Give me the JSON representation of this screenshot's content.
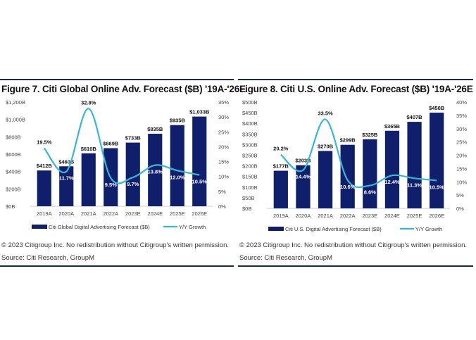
{
  "colors": {
    "bar": "#0f1f6b",
    "line": "#35b8d8",
    "rule": "#1a2a4a"
  },
  "chart_data": [
    {
      "type": "bar",
      "title": "Figure 7. Citi Global Online Adv. Forecast ($B) '19A-'26E",
      "categories": [
        "2019A",
        "2020A",
        "2021A",
        "2022A",
        "2023E",
        "2024E",
        "2025E",
        "2026E"
      ],
      "series": [
        {
          "name": "Citi Global Digital Advertising Forecast ($B)",
          "type": "bar",
          "axis": "left",
          "values": [
            412,
            460,
            610,
            669,
            733,
            835,
            935,
            1033
          ],
          "labels": [
            "$412B",
            "$460B",
            "$610B",
            "$669B",
            "$733B",
            "$835B",
            "$935B",
            "$1,033B"
          ]
        },
        {
          "name": "Y/Y Growth",
          "type": "line",
          "axis": "right",
          "values": [
            19.5,
            11.7,
            32.8,
            9.5,
            9.7,
            13.8,
            12.0,
            10.5
          ],
          "labels": [
            "19.5%",
            "11.7%",
            "32.8%",
            "9.5%",
            "9.7%",
            "13.8%",
            "12.0%",
            "10.5%"
          ]
        }
      ],
      "ylim": [
        0,
        1200
      ],
      "yticks": [
        "$0B",
        "$200B",
        "$400B",
        "$600B",
        "$800B",
        "$1,000B",
        "$1,200B"
      ],
      "y2lim": [
        0,
        35
      ],
      "y2ticks": [
        "0%",
        "5%",
        "10%",
        "15%",
        "20%",
        "25%",
        "30%",
        "35%"
      ],
      "legend": "bottom",
      "grid": false,
      "copyright": "© 2023 Citigroup Inc. No redistribution without Citigroup's written permission.",
      "source": "Source: Citi Research, GroupM"
    },
    {
      "type": "bar",
      "title": "Figure 8. Citi U.S. Online Adv. Forecast ($B) '19A-'26E",
      "categories": [
        "2019A",
        "2020A",
        "2021A",
        "2022A",
        "2023E",
        "2024E",
        "2025E",
        "2026E"
      ],
      "series": [
        {
          "name": "Citi U.S. Digital Advertising Forecast ($B)",
          "type": "bar",
          "axis": "left",
          "values": [
            177,
            203,
            270,
            299,
            325,
            365,
            407,
            450
          ],
          "labels": [
            "$177B",
            "$203B",
            "$270B",
            "$299B",
            "$325B",
            "$365B",
            "$407B",
            "$450B"
          ]
        },
        {
          "name": "Y/Y Growth",
          "type": "line",
          "axis": "right",
          "values": [
            20.2,
            14.4,
            33.5,
            10.6,
            8.6,
            12.4,
            11.3,
            10.5
          ],
          "labels": [
            "20.2%",
            "14.4%",
            "33.5%",
            "10.6%",
            "8.6%",
            "12.4%",
            "11.3%",
            "10.5%"
          ]
        }
      ],
      "ylim": [
        0,
        500
      ],
      "yticks": [
        "$0B",
        "$50B",
        "$100B",
        "$150B",
        "$200B",
        "$250B",
        "$300B",
        "$350B",
        "$400B",
        "$450B",
        "$500B"
      ],
      "y2lim": [
        0,
        40
      ],
      "y2ticks": [
        "0%",
        "5%",
        "10%",
        "15%",
        "20%",
        "25%",
        "30%",
        "35%",
        "40%"
      ],
      "legend": "bottom",
      "grid": false,
      "copyright": "© 2023 Citigroup Inc. No redistribution without Citigroup's written permission.",
      "source": "Source: Citi Research, GroupM"
    }
  ]
}
